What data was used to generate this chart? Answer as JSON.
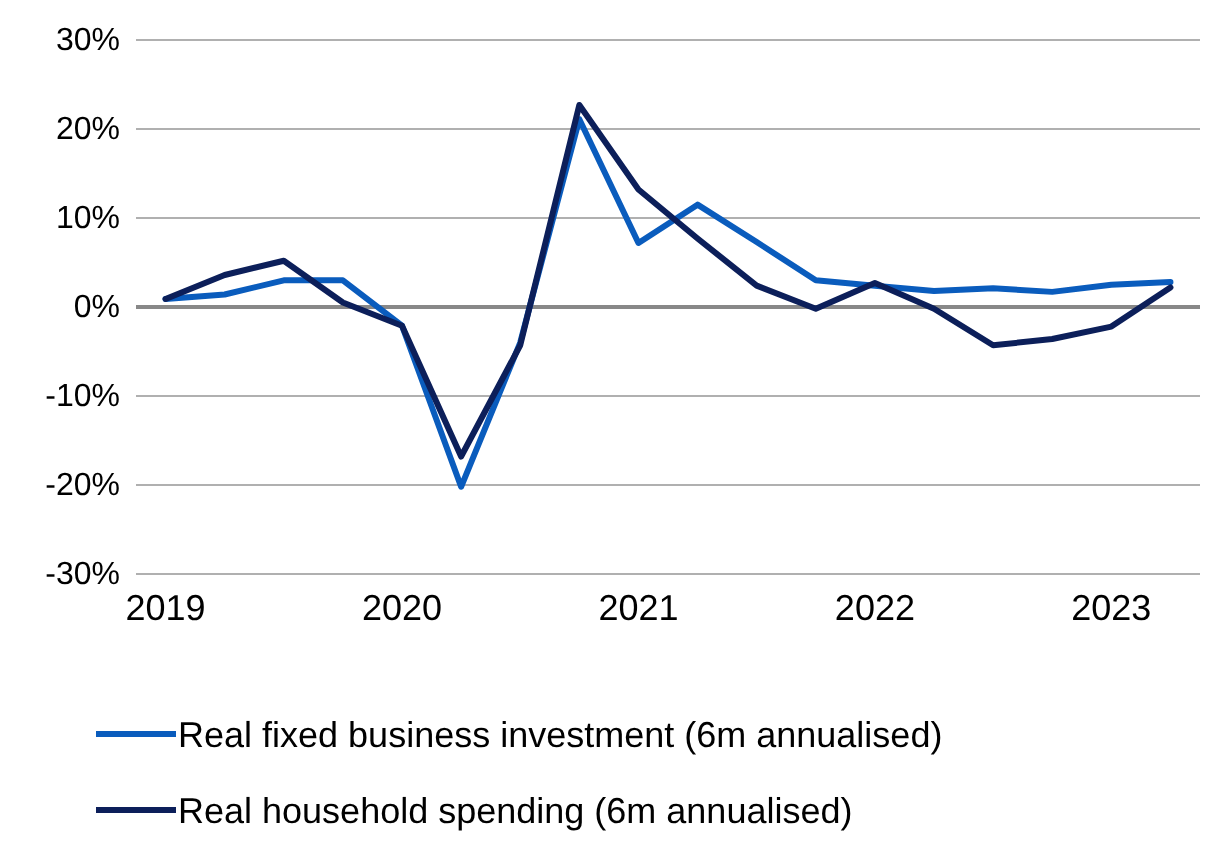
{
  "chart_data": {
    "type": "line",
    "x": [
      2019,
      2019.25,
      2019.5,
      2019.75,
      2020,
      2020.25,
      2020.5,
      2020.75,
      2021,
      2021.25,
      2021.5,
      2021.75,
      2022,
      2022.25,
      2022.5,
      2022.75,
      2023,
      2023.25
    ],
    "series": [
      {
        "name": "Real fixed business investment (6m annualised)",
        "color": "#0a5cbd",
        "values": [
          0.9,
          1.4,
          3.0,
          3.0,
          -2.1,
          -20.2,
          -4.0,
          21.1,
          7.2,
          11.5,
          7.3,
          3.0,
          2.4,
          1.8,
          2.1,
          1.7,
          2.5,
          2.8
        ]
      },
      {
        "name": "Real household spending (6m annualised)",
        "color": "#0c1f5a",
        "values": [
          0.9,
          3.6,
          5.2,
          0.5,
          -2.1,
          -16.8,
          -4.3,
          22.7,
          13.2,
          7.7,
          2.4,
          -0.2,
          2.7,
          -0.2,
          -4.3,
          -3.6,
          -2.2,
          2.2
        ]
      }
    ],
    "xlim": [
      2018.875,
      2023.375
    ],
    "xticks": [
      {
        "value": 2019,
        "label": "2019"
      },
      {
        "value": 2020,
        "label": "2020"
      },
      {
        "value": 2021,
        "label": "2021"
      },
      {
        "value": 2022,
        "label": "2022"
      },
      {
        "value": 2023,
        "label": "2023"
      }
    ],
    "ylim": [
      -30,
      30
    ],
    "yticks": [
      {
        "value": -30,
        "label": "-30%"
      },
      {
        "value": -20,
        "label": "-20%"
      },
      {
        "value": -10,
        "label": "-10%"
      },
      {
        "value": 0,
        "label": "0%"
      },
      {
        "value": 10,
        "label": "10%"
      },
      {
        "value": 20,
        "label": "20%"
      },
      {
        "value": 30,
        "label": "30%"
      }
    ],
    "ref_lines": [
      {
        "axis": "y",
        "value": 0,
        "color": "#888888"
      }
    ],
    "grid": "y",
    "legend": "bottom",
    "marker": "none",
    "line_style": "solid"
  }
}
